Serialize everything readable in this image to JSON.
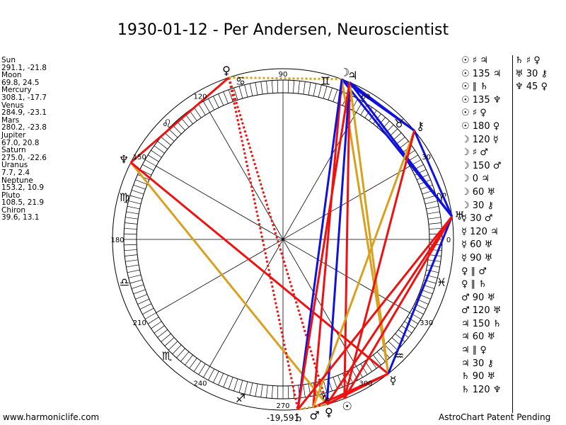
{
  "title": "1930-01-12 - Per Andersen, Neuroscientist",
  "planets": [
    {
      "name": "Sun",
      "coords": "291.1, -21.8"
    },
    {
      "name": "Moon",
      "coords": "69.8, 24.5"
    },
    {
      "name": "Mercury",
      "coords": "308.1, -17.7"
    },
    {
      "name": "Venus",
      "coords": "284.9, -23.1"
    },
    {
      "name": "Mars",
      "coords": "280.2, -23.8"
    },
    {
      "name": "Jupiter",
      "coords": "67.0, 20.8"
    },
    {
      "name": "Saturn",
      "coords": "275.0, -22.6"
    },
    {
      "name": "Uranus",
      "coords": "7.7, 2.4"
    },
    {
      "name": "Neptune",
      "coords": "153.2, 10.9"
    },
    {
      "name": "Pluto",
      "coords": "108.5, 21.9"
    },
    {
      "name": "Chiron",
      "coords": "39.6, 13.1"
    }
  ],
  "degree_labels": [
    "0",
    "30",
    "60",
    "90",
    "120",
    "150",
    "180",
    "210",
    "240",
    "270",
    "300",
    "330"
  ],
  "bottom_value": "-19,591",
  "footer": {
    "left": "www.harmoniclife.com",
    "right": "AstroChart Patent Pending"
  },
  "aspects_col1": [
    "☉ ♯ ♃",
    "☉ 135 ♃",
    "☉ ∥ ♄",
    "☉ 135 ♆",
    "☉ ♯ ♀",
    "☉ 180 ♀",
    "☽ 120 ☿",
    "☽ ♯ ♂",
    "☽ 150 ♂",
    "☽ 0 ♃",
    "☽ 60 ♅",
    "☽ 30 ⚷",
    "☿ 30 ♂",
    "☿ 120 ♃",
    "☿ 60 ♅",
    "☿ 90 ♅",
    "♀ ∥ ♂",
    "♀ ∥ ♄",
    "♂ 90 ♅",
    "♂ 120 ♅",
    "♃ 150 ♄",
    "♃ 60 ♅",
    "♃ ∥ ♀",
    "♃ 30 ⚷",
    "♄ 90 ♅",
    "♄ 120 ♆"
  ],
  "aspects_col2": [
    "♄ ♯ ♀",
    "♅ 30 ⚷",
    "♆ 45 ♀"
  ],
  "colors": {
    "red": "#ee1111",
    "blue": "#1111dd",
    "gold": "#d9a020",
    "black": "#000000"
  },
  "chart_data": {
    "type": "diagram",
    "planet_longitudes": {
      "sun": 291.1,
      "moon": 69.8,
      "mercury": 308.1,
      "venus": 284.9,
      "mars": 280.2,
      "jupiter": 67.0,
      "saturn": 275.0,
      "uranus": 7.7,
      "neptune": 153.2,
      "pluto": 108.5,
      "chiron": 39.6
    },
    "aspect_lines": [
      {
        "from": "pluto",
        "to": "neptune",
        "color": "red",
        "style": "solid"
      },
      {
        "from": "neptune",
        "to": "venus",
        "color": "gold",
        "style": "solid"
      },
      {
        "from": "neptune",
        "to": "mercury",
        "color": "red",
        "style": "solid"
      },
      {
        "from": "pluto",
        "to": "saturn",
        "color": "red",
        "style": "dotted"
      },
      {
        "from": "pluto",
        "to": "venus",
        "color": "red",
        "style": "dotted"
      },
      {
        "from": "pluto",
        "to": "moon",
        "color": "gold",
        "style": "dotted"
      },
      {
        "from": "moon",
        "to": "chiron",
        "color": "blue",
        "style": "solid"
      },
      {
        "from": "moon",
        "to": "uranus",
        "color": "blue",
        "style": "solid"
      },
      {
        "from": "moon",
        "to": "mars",
        "color": "red",
        "style": "solid"
      },
      {
        "from": "moon",
        "to": "mercury",
        "color": "gold",
        "style": "solid"
      },
      {
        "from": "moon",
        "to": "saturn",
        "color": "blue",
        "style": "solid"
      },
      {
        "from": "jupiter",
        "to": "sun",
        "color": "red",
        "style": "solid"
      },
      {
        "from": "jupiter",
        "to": "venus",
        "color": "blue",
        "style": "solid"
      },
      {
        "from": "jupiter",
        "to": "mercury",
        "color": "gold",
        "style": "solid"
      },
      {
        "from": "jupiter",
        "to": "uranus",
        "color": "blue",
        "style": "solid"
      },
      {
        "from": "jupiter",
        "to": "chiron",
        "color": "blue",
        "style": "solid"
      },
      {
        "from": "jupiter",
        "to": "saturn",
        "color": "red",
        "style": "solid"
      },
      {
        "from": "chiron",
        "to": "uranus",
        "color": "blue",
        "style": "solid"
      },
      {
        "from": "chiron",
        "to": "mars",
        "color": "gold",
        "style": "solid"
      },
      {
        "from": "chiron",
        "to": "sun",
        "color": "red",
        "style": "solid"
      },
      {
        "from": "uranus",
        "to": "mercury",
        "color": "blue",
        "style": "solid"
      },
      {
        "from": "uranus",
        "to": "saturn",
        "color": "red",
        "style": "solid"
      },
      {
        "from": "uranus",
        "to": "venus",
        "color": "red",
        "style": "solid"
      },
      {
        "from": "uranus",
        "to": "sun",
        "color": "red",
        "style": "solid"
      },
      {
        "from": "mercury",
        "to": "mars",
        "color": "red",
        "style": "solid"
      },
      {
        "from": "mercury",
        "to": "venus",
        "color": "red",
        "style": "solid"
      },
      {
        "from": "venus",
        "to": "saturn",
        "color": "gold",
        "style": "dotted"
      }
    ]
  }
}
